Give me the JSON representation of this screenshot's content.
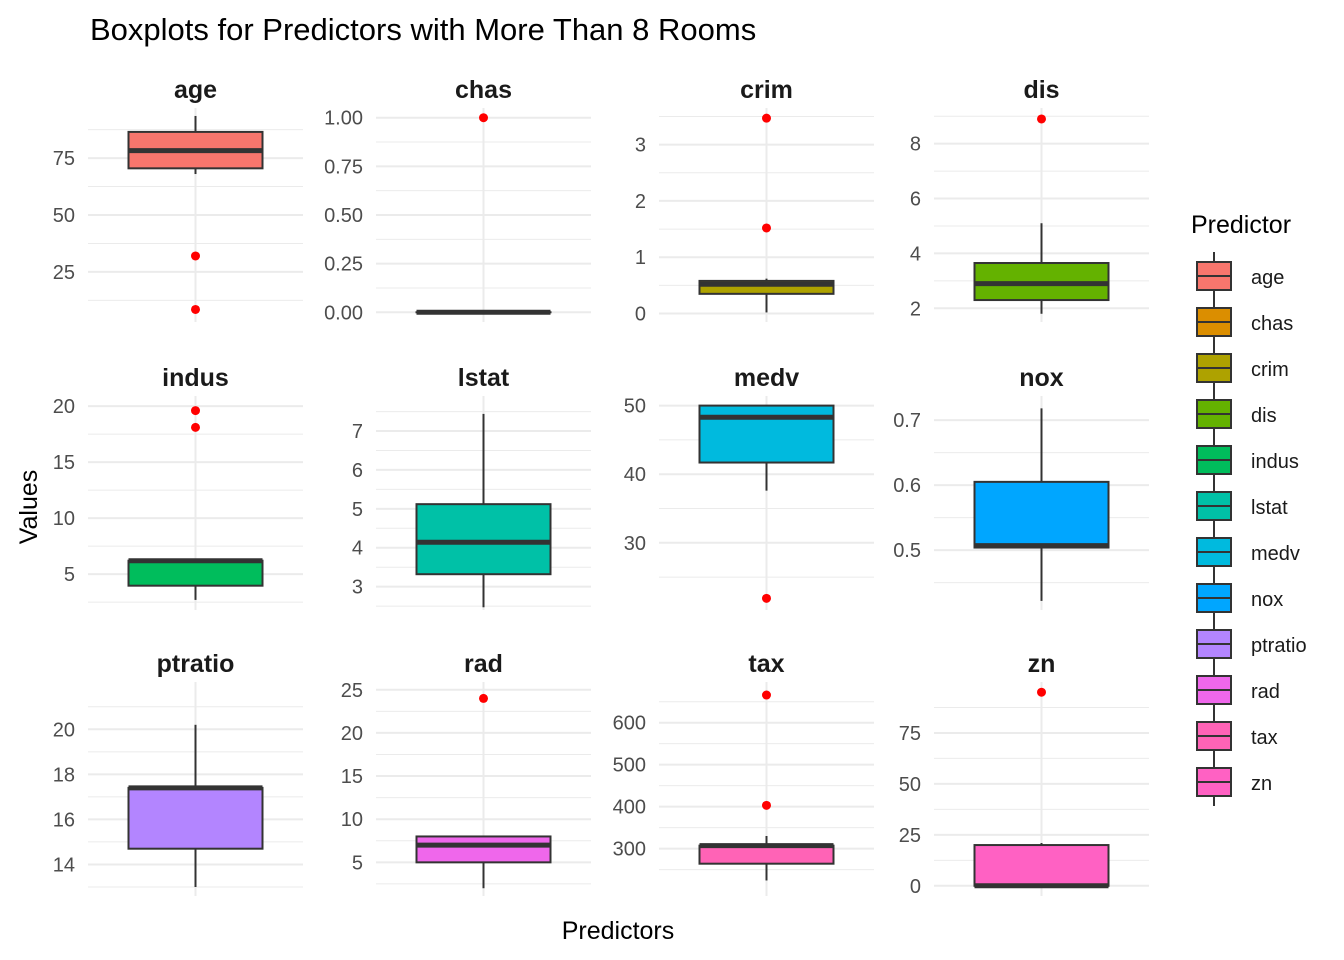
{
  "chart_data": {
    "type": "boxplot",
    "title": "Boxplots for Predictors with More Than 8 Rooms",
    "xlabel": "Predictors",
    "ylabel": "Values",
    "legend": {
      "title": "Predictor",
      "placement": "right"
    },
    "grid": true,
    "facets": [
      {
        "name": "age",
        "color": "#F8766D",
        "ylim": [
          3,
          97
        ],
        "ticks": [
          {
            "value": 25,
            "label": "25"
          },
          {
            "value": 50,
            "label": "50"
          },
          {
            "value": 75,
            "label": "75"
          }
        ],
        "box": {
          "lower_whisker": 68,
          "q1": 70.5,
          "median": 78.3,
          "q3": 86.5,
          "upper_whisker": 93.5
        },
        "outliers": [
          32,
          8.5
        ]
      },
      {
        "name": "chas",
        "color": "#DB8E00",
        "ylim": [
          -0.05,
          1.05
        ],
        "ticks": [
          {
            "value": 0,
            "label": "0.00"
          },
          {
            "value": 0.25,
            "label": "0.25"
          },
          {
            "value": 0.5,
            "label": "0.50"
          },
          {
            "value": 0.75,
            "label": "0.75"
          },
          {
            "value": 1,
            "label": "1.00"
          }
        ],
        "box": {
          "lower_whisker": 0,
          "q1": 0,
          "median": 0,
          "q3": 0,
          "upper_whisker": 0
        },
        "outliers": [
          1
        ]
      },
      {
        "name": "crim",
        "color": "#AEA200",
        "ylim": [
          -0.15,
          3.65
        ],
        "ticks": [
          {
            "value": 0,
            "label": "0"
          },
          {
            "value": 1,
            "label": "1"
          },
          {
            "value": 2,
            "label": "2"
          },
          {
            "value": 3,
            "label": "3"
          }
        ],
        "box": {
          "lower_whisker": 0.02,
          "q1": 0.35,
          "median": 0.52,
          "q3": 0.58,
          "upper_whisker": 0.62
        },
        "outliers": [
          3.47,
          1.52
        ]
      },
      {
        "name": "dis",
        "color": "#64B200",
        "ylim": [
          1.5,
          9.3
        ],
        "ticks": [
          {
            "value": 2,
            "label": "2"
          },
          {
            "value": 4,
            "label": "4"
          },
          {
            "value": 6,
            "label": "6"
          },
          {
            "value": 8,
            "label": "8"
          }
        ],
        "box": {
          "lower_whisker": 1.8,
          "q1": 2.3,
          "median": 2.9,
          "q3": 3.65,
          "upper_whisker": 5.1
        },
        "outliers": [
          8.9
        ]
      },
      {
        "name": "indus",
        "color": "#00BD5C",
        "ylim": [
          1.8,
          20.9
        ],
        "ticks": [
          {
            "value": 5,
            "label": "5"
          },
          {
            "value": 10,
            "label": "10"
          },
          {
            "value": 15,
            "label": "15"
          },
          {
            "value": 20,
            "label": "20"
          }
        ],
        "box": {
          "lower_whisker": 2.7,
          "q1": 3.97,
          "median": 6.2,
          "q3": 6.2,
          "upper_whisker": 6.2
        },
        "outliers": [
          19.6,
          18.1
        ]
      },
      {
        "name": "lstat",
        "color": "#00C1A7",
        "ylim": [
          2.4,
          7.9
        ],
        "ticks": [
          {
            "value": 3,
            "label": "3"
          },
          {
            "value": 4,
            "label": "4"
          },
          {
            "value": 5,
            "label": "5"
          },
          {
            "value": 6,
            "label": "6"
          },
          {
            "value": 7,
            "label": "7"
          }
        ],
        "box": {
          "lower_whisker": 2.47,
          "q1": 3.32,
          "median": 4.14,
          "q3": 5.12,
          "upper_whisker": 7.44
        },
        "outliers": []
      },
      {
        "name": "medv",
        "color": "#00BADE",
        "ylim": [
          20.2,
          51.4
        ],
        "ticks": [
          {
            "value": 30,
            "label": "30"
          },
          {
            "value": 40,
            "label": "40"
          },
          {
            "value": 50,
            "label": "50"
          }
        ],
        "box": {
          "lower_whisker": 37.6,
          "q1": 41.7,
          "median": 48.3,
          "q3": 50,
          "upper_whisker": 50
        },
        "outliers": [
          21.9
        ]
      },
      {
        "name": "nox",
        "color": "#00A6FF",
        "ylim": [
          0.408,
          0.737
        ],
        "ticks": [
          {
            "value": 0.5,
            "label": "0.5"
          },
          {
            "value": 0.6,
            "label": "0.6"
          },
          {
            "value": 0.7,
            "label": "0.7"
          }
        ],
        "box": {
          "lower_whisker": 0.422,
          "q1": 0.504,
          "median": 0.507,
          "q3": 0.605,
          "upper_whisker": 0.718
        },
        "outliers": []
      },
      {
        "name": "ptratio",
        "color": "#B385FF",
        "ylim": [
          12.6,
          22.1
        ],
        "ticks": [
          {
            "value": 14,
            "label": "14"
          },
          {
            "value": 16,
            "label": "16"
          },
          {
            "value": 18,
            "label": "18"
          },
          {
            "value": 20,
            "label": "20"
          }
        ],
        "box": {
          "lower_whisker": 13,
          "q1": 14.7,
          "median": 17.4,
          "q3": 17.4,
          "upper_whisker": 20.2
        },
        "outliers": []
      },
      {
        "name": "rad",
        "color": "#EF67EB",
        "ylim": [
          1.1,
          25.9
        ],
        "ticks": [
          {
            "value": 5,
            "label": "5"
          },
          {
            "value": 10,
            "label": "10"
          },
          {
            "value": 15,
            "label": "15"
          },
          {
            "value": 20,
            "label": "20"
          },
          {
            "value": 25,
            "label": "25"
          }
        ],
        "box": {
          "lower_whisker": 2,
          "q1": 5,
          "median": 7,
          "q3": 8,
          "upper_whisker": 8
        },
        "outliers": [
          24
        ]
      },
      {
        "name": "tax",
        "color": "#FF63B6",
        "ylim": [
          187,
          697
        ],
        "ticks": [
          {
            "value": 300,
            "label": "300"
          },
          {
            "value": 400,
            "label": "400"
          },
          {
            "value": 500,
            "label": "500"
          },
          {
            "value": 600,
            "label": "600"
          }
        ],
        "box": {
          "lower_whisker": 224,
          "q1": 264,
          "median": 307,
          "q3": 307,
          "upper_whisker": 330
        },
        "outliers": [
          666,
          403
        ]
      },
      {
        "name": "zn",
        "color": "#FF61C3",
        "ylim": [
          -5,
          100
        ],
        "ticks": [
          {
            "value": 0,
            "label": "0"
          },
          {
            "value": 25,
            "label": "25"
          },
          {
            "value": 50,
            "label": "50"
          },
          {
            "value": 75,
            "label": "75"
          }
        ],
        "box": {
          "lower_whisker": 0,
          "q1": 0,
          "median": 0,
          "q3": 20,
          "upper_whisker": 21
        },
        "outliers": [
          95
        ]
      }
    ]
  }
}
